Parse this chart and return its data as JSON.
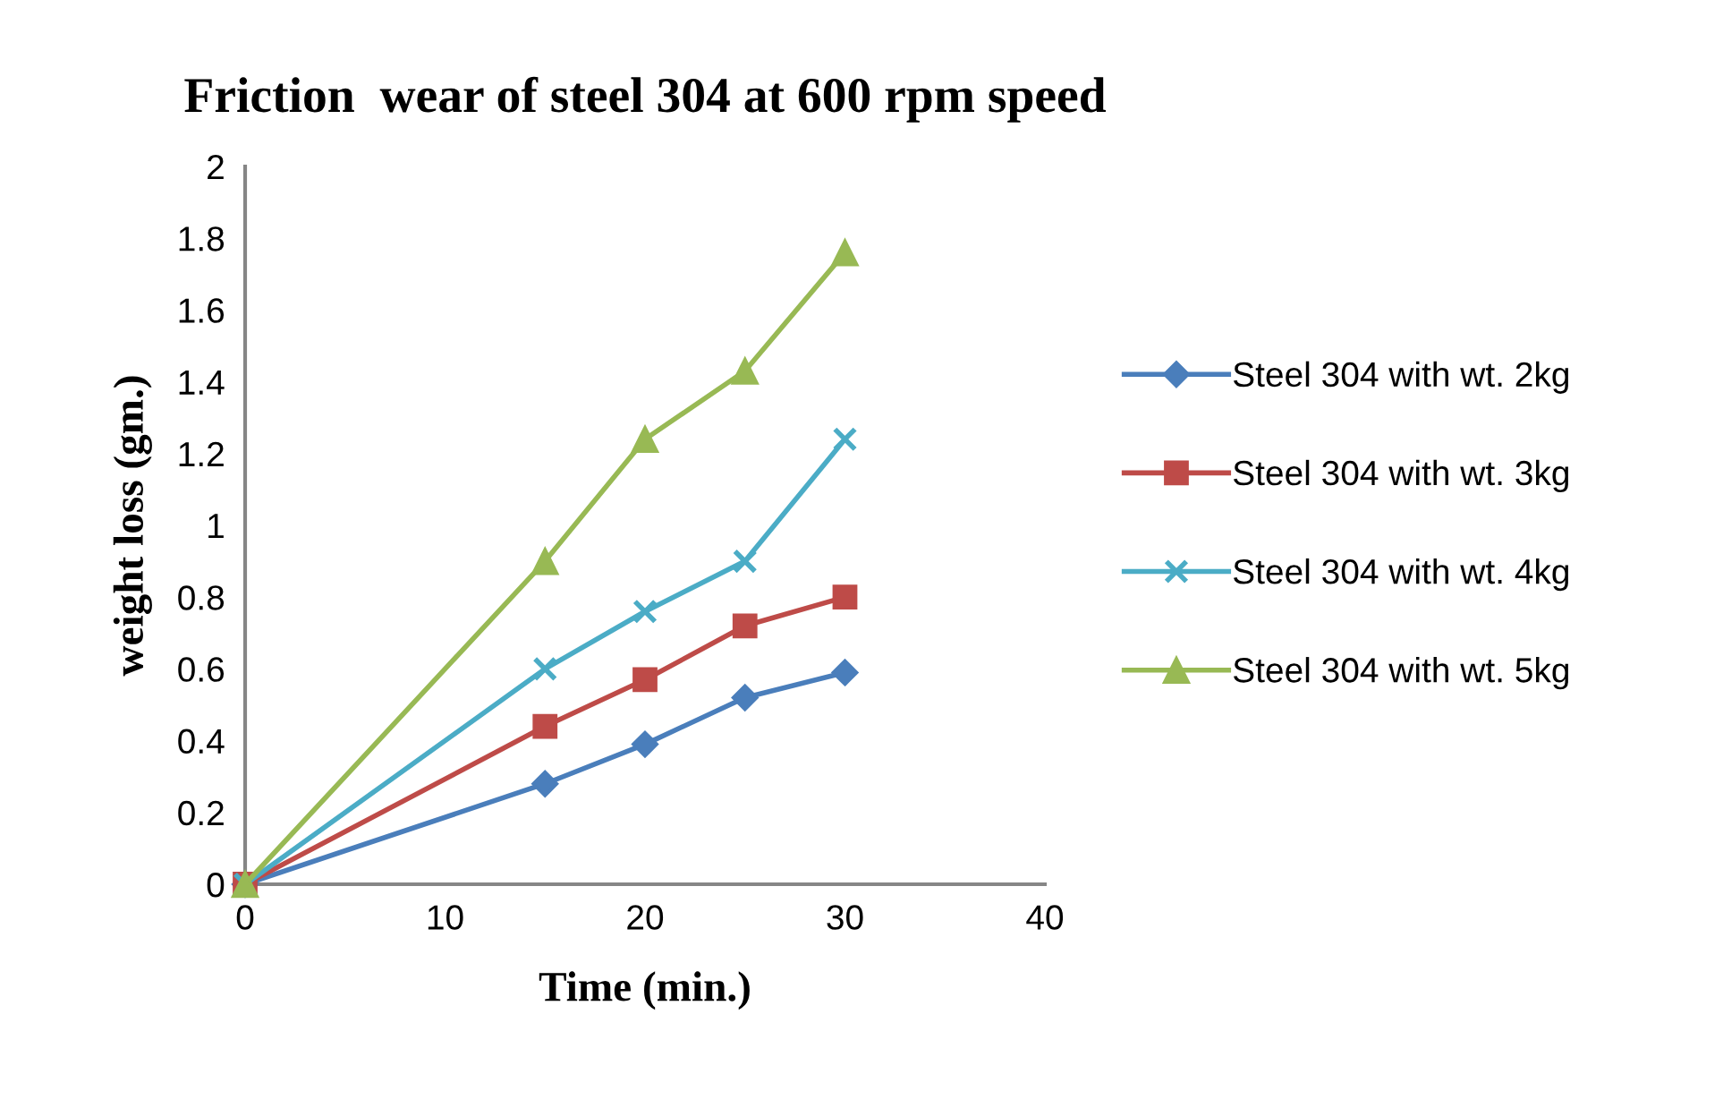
{
  "chart_data": {
    "type": "line",
    "title": "Friction  wear of steel 304 at 600 rpm speed",
    "xlabel": "Time (min.)",
    "ylabel": "weight loss (gm.)",
    "x": [
      0,
      15,
      20,
      25,
      30
    ],
    "series": [
      {
        "name": "Steel 304 with wt. 2kg",
        "color": "#4a7ebb",
        "marker": "diamond",
        "values": [
          0,
          0.28,
          0.39,
          0.52,
          0.59
        ]
      },
      {
        "name": "Steel 304 with wt. 3kg",
        "color": "#be4b48",
        "marker": "square",
        "values": [
          0,
          0.44,
          0.57,
          0.72,
          0.8
        ]
      },
      {
        "name": "Steel 304 with wt. 4kg",
        "color": "#4bacc6",
        "marker": "cross",
        "values": [
          0,
          0.6,
          0.76,
          0.9,
          1.24
        ]
      },
      {
        "name": "Steel 304 with wt. 5kg",
        "color": "#98b954",
        "marker": "triangle",
        "values": [
          0,
          0.9,
          1.24,
          1.43,
          1.76
        ]
      }
    ],
    "xlim": [
      0,
      40
    ],
    "xticks": [
      0,
      10,
      20,
      30,
      40
    ],
    "ylim": [
      0,
      2
    ],
    "yticks": [
      0,
      0.2,
      0.4,
      0.6,
      0.8,
      1,
      1.2,
      1.4,
      1.6,
      1.8,
      2
    ],
    "grid": false,
    "legend": "right",
    "line_style": "solid"
  }
}
